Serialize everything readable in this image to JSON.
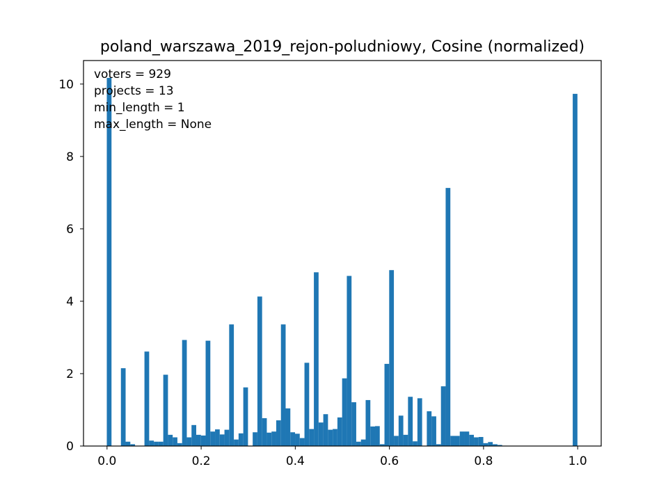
{
  "chart_data": {
    "type": "bar",
    "title": "poland_warszawa_2019_rejon-poludniowy, Cosine (normalized)",
    "xlabel": "",
    "ylabel": "",
    "xlim": [
      -0.05,
      1.05
    ],
    "ylim": [
      0,
      10.65
    ],
    "xticks": [
      0.0,
      0.2,
      0.4,
      0.6,
      0.8,
      1.0
    ],
    "xtick_labels": [
      "0.0",
      "0.2",
      "0.4",
      "0.6",
      "0.8",
      "1.0"
    ],
    "yticks": [
      0,
      2,
      4,
      6,
      8,
      10
    ],
    "ytick_labels": [
      "0",
      "2",
      "4",
      "6",
      "8",
      "10"
    ],
    "grid": false,
    "color": "#1f77b4",
    "bin_width": 0.01,
    "bins": {
      "x": [
        0.0,
        0.01,
        0.02,
        0.03,
        0.04,
        0.05,
        0.06,
        0.07,
        0.08,
        0.09,
        0.1,
        0.11,
        0.12,
        0.13,
        0.14,
        0.15,
        0.16,
        0.17,
        0.18,
        0.19,
        0.2,
        0.21,
        0.22,
        0.23,
        0.24,
        0.25,
        0.26,
        0.27,
        0.28,
        0.29,
        0.3,
        0.31,
        0.32,
        0.33,
        0.34,
        0.35,
        0.36,
        0.37,
        0.38,
        0.39,
        0.4,
        0.41,
        0.42,
        0.43,
        0.44,
        0.45,
        0.46,
        0.47,
        0.48,
        0.49,
        0.5,
        0.51,
        0.52,
        0.53,
        0.54,
        0.55,
        0.56,
        0.57,
        0.58,
        0.59,
        0.6,
        0.61,
        0.62,
        0.63,
        0.64,
        0.65,
        0.66,
        0.67,
        0.68,
        0.69,
        0.7,
        0.71,
        0.72,
        0.73,
        0.74,
        0.75,
        0.76,
        0.77,
        0.78,
        0.79,
        0.8,
        0.81,
        0.82,
        0.83,
        0.84,
        0.85,
        0.86,
        0.87,
        0.88,
        0.89,
        0.9,
        0.91,
        0.92,
        0.93,
        0.94,
        0.95,
        0.96,
        0.97,
        0.98,
        0.99
      ],
      "values": [
        10.17,
        0,
        0,
        2.15,
        0.12,
        0.05,
        0,
        0,
        2.61,
        0.15,
        0.12,
        0.12,
        1.97,
        0.31,
        0.24,
        0.08,
        2.93,
        0.24,
        0.58,
        0.31,
        0.29,
        2.91,
        0.4,
        0.46,
        0.32,
        0.45,
        3.36,
        0.18,
        0.35,
        1.62,
        0,
        0.38,
        4.13,
        0.77,
        0.37,
        0.4,
        0.71,
        3.36,
        1.04,
        0.38,
        0.34,
        0.22,
        2.3,
        0.47,
        4.8,
        0.65,
        0.88,
        0.45,
        0.47,
        0.79,
        1.87,
        4.7,
        1.21,
        0.12,
        0.18,
        1.27,
        0.54,
        0.55,
        0.05,
        2.27,
        4.86,
        0.28,
        0.84,
        0.31,
        1.36,
        0.13,
        1.32,
        0,
        0.96,
        0.82,
        0.05,
        1.65,
        7.13,
        0.28,
        0.28,
        0.4,
        0.4,
        0.31,
        0.24,
        0.25,
        0.08,
        0.11,
        0.05,
        0.03,
        0.01,
        0,
        0,
        0,
        0,
        0,
        0,
        0,
        0,
        0,
        0,
        0,
        0,
        0,
        0,
        9.73
      ]
    },
    "annotations": [
      "voters = 929",
      "projects = 13",
      "min_length = 1",
      "max_length = None"
    ]
  }
}
